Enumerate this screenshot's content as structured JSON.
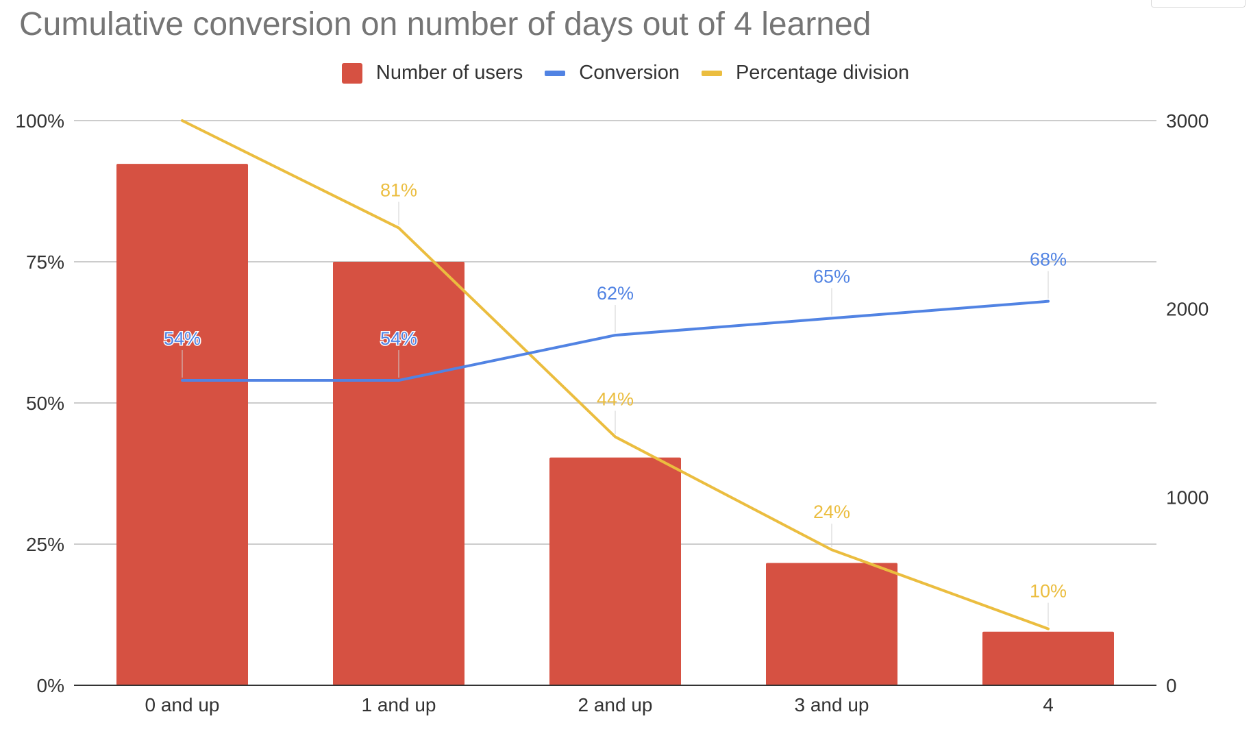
{
  "chart_data": {
    "type": "bar",
    "title": "Cumulative conversion on number of days out of 4 learned",
    "categories": [
      "0 and up",
      "1 and up",
      "2 and up",
      "3 and up",
      "4"
    ],
    "series": [
      {
        "name": "Number of users",
        "kind": "bar",
        "axis": "right",
        "color": "#d65142",
        "values": [
          2770,
          2250,
          1210,
          650,
          285
        ]
      },
      {
        "name": "Conversion",
        "kind": "line",
        "axis": "left",
        "color": "#5183e3",
        "values": [
          54,
          54,
          62,
          65,
          68
        ],
        "labels": [
          "54%",
          "54%",
          "62%",
          "65%",
          "68%"
        ]
      },
      {
        "name": "Percentage division",
        "kind": "line",
        "axis": "left",
        "color": "#ebbd3f",
        "values": [
          100,
          81,
          44,
          24,
          10
        ],
        "labels": [
          "",
          "81%",
          "44%",
          "24%",
          "10%"
        ]
      }
    ],
    "left_axis": {
      "min": 0,
      "max": 100,
      "ticks": [
        "0%",
        "25%",
        "50%",
        "75%",
        "100%"
      ]
    },
    "right_axis": {
      "min": 0,
      "max": 3000,
      "ticks": [
        "0",
        "1000",
        "2000",
        "3000"
      ]
    },
    "grid": true,
    "legend_position": "top"
  }
}
